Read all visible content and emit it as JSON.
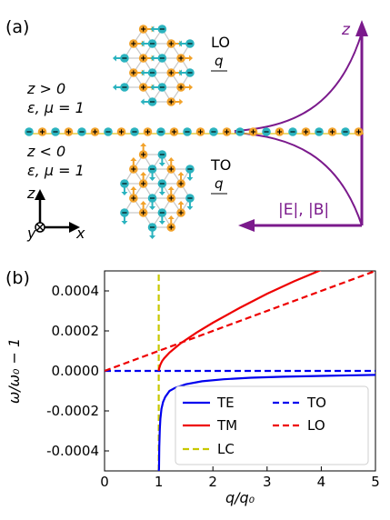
{
  "panel_a": {
    "label": "(a)",
    "region_upper": "z > 0",
    "region_upper_eps": "ε, μ = 1",
    "region_lower": "z < 0",
    "region_lower_eps": "ε, μ = 1",
    "lo_label": "LO",
    "to_label": "TO",
    "q_label": "q",
    "z_axis_label": "z",
    "field_label": "|E|, |B|",
    "axes_z": "z",
    "axes_y": "y",
    "axes_x": "x",
    "colors": {
      "cyan": "#2bb3bf",
      "orange": "#f2a22a",
      "purple": "#7b1a8c",
      "chain": "#e3c31c"
    }
  },
  "panel_b": {
    "label": "(b)"
  },
  "chart_data": {
    "type": "line",
    "xlabel": "q/q₀",
    "ylabel": "ω/ω₀ − 1",
    "xlim": [
      0,
      5
    ],
    "ylim": [
      -0.0005,
      0.0005
    ],
    "xticks": [
      "0",
      "1",
      "2",
      "3",
      "4",
      "5"
    ],
    "yticks": [
      "0.0004",
      "0.0002",
      "0.0000",
      "-0.0002",
      "-0.0004"
    ],
    "legend_placement": "lower-right",
    "series": [
      {
        "name": "TE",
        "color": "#0000ee",
        "style": "solid",
        "x": [
          1.0,
          1.005,
          1.01,
          1.02,
          1.03,
          1.05,
          1.08,
          1.12,
          1.2,
          1.3,
          1.5,
          1.8,
          2.2,
          2.7,
          3.3,
          4.0,
          4.6,
          5.0
        ],
        "y": [
          -0.0005,
          -0.00049,
          -0.00038,
          -0.00029,
          -0.00024,
          -0.00019,
          -0.000155,
          -0.00013,
          -0.0001,
          -8.5e-05,
          -6.7e-05,
          -5.2e-05,
          -4.2e-05,
          -3.4e-05,
          -2.9e-05,
          -2.5e-05,
          -2.2e-05,
          -2e-05
        ]
      },
      {
        "name": "TM",
        "color": "#ee0000",
        "style": "solid",
        "x": [
          1.0,
          1.005,
          1.01,
          1.03,
          1.06,
          1.1,
          1.2,
          1.4,
          1.7,
          2.0,
          2.5,
          3.0,
          3.5,
          4.0,
          4.5,
          5.0
        ],
        "y": [
          0.0,
          8e-06,
          1.4e-05,
          3.1e-05,
          4.8e-05,
          6.3e-05,
          9.2e-05,
          0.000137,
          0.000192,
          0.000241,
          0.000316,
          0.000386,
          0.000448,
          0.000505,
          0.000558,
          0.000605
        ]
      },
      {
        "name": "LC",
        "color": "#c8c800",
        "style": "dashed",
        "x": [
          1.0,
          1.0
        ],
        "y": [
          -0.0005,
          0.0005
        ]
      },
      {
        "name": "TO",
        "color": "#0000ee",
        "style": "dashed",
        "x": [
          0,
          5
        ],
        "y": [
          0.0,
          0.0
        ]
      },
      {
        "name": "LO",
        "color": "#ee0000",
        "style": "dashed",
        "x": [
          0,
          5
        ],
        "y": [
          0.0,
          0.0005
        ]
      }
    ]
  }
}
